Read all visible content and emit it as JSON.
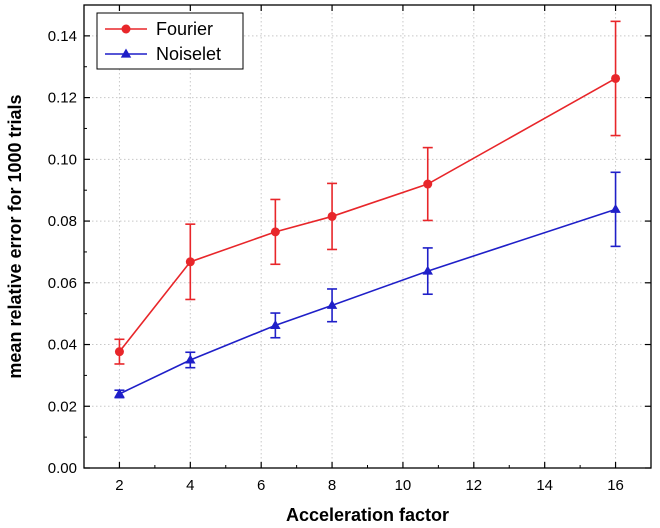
{
  "chart_data": {
    "type": "line",
    "xlabel": "Acceleration factor",
    "ylabel": "mean relative error for 1000 trials",
    "xlim": [
      1,
      17
    ],
    "ylim": [
      0,
      0.15
    ],
    "xticks": [
      "2",
      "4",
      "6",
      "8",
      "10",
      "12",
      "14",
      "16"
    ],
    "yticks": [
      "0.00",
      "0.02",
      "0.04",
      "0.06",
      "0.08",
      "0.10",
      "0.12",
      "0.14"
    ],
    "grid": true,
    "legend_position": "top-left",
    "series": [
      {
        "name": "Fourier",
        "color": "#e8262a",
        "marker": "circle",
        "x": [
          2,
          4,
          6.4,
          8,
          10.7,
          16
        ],
        "y": [
          0.0377,
          0.0668,
          0.0765,
          0.0815,
          0.092,
          0.1262
        ],
        "err": [
          0.004,
          0.0122,
          0.0105,
          0.0107,
          0.0118,
          0.0185
        ]
      },
      {
        "name": "Noiselet",
        "color": "#1f1fc8",
        "marker": "triangle",
        "x": [
          2,
          4,
          6.4,
          8,
          10.7,
          16
        ],
        "y": [
          0.024,
          0.035,
          0.0462,
          0.0527,
          0.0638,
          0.0838
        ],
        "err": [
          0.0012,
          0.0025,
          0.004,
          0.0053,
          0.0075,
          0.012
        ]
      }
    ]
  }
}
